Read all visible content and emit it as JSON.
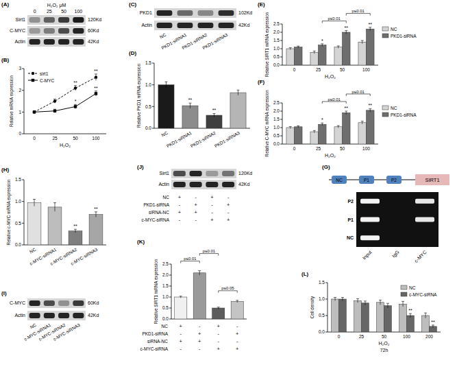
{
  "panel_labels": [
    "(A)",
    "(B)",
    "(C)",
    "(D)",
    "(E)",
    "(F)",
    "(G)",
    "(H)",
    "(I)",
    "(J)",
    "(K)",
    "(L)"
  ],
  "blots": [
    {
      "header": "H₂O₂ μM",
      "lanes": [
        "0",
        "25",
        "50",
        "100"
      ],
      "rows": [
        {
          "name": "Sirt1",
          "size": "120Kd",
          "intensity": [
            0.35,
            0.6,
            0.8,
            0.95
          ]
        },
        {
          "name": "C-MYC",
          "size": "60Kd",
          "intensity": [
            0.3,
            0.45,
            0.7,
            0.9
          ]
        },
        {
          "name": "Actin",
          "size": "42Kd",
          "intensity": [
            0.9,
            0.9,
            0.9,
            0.9
          ]
        }
      ]
    },
    {
      "lanes": [
        "NC",
        "PKD1-siRNA1",
        "PKD1-siRNA2",
        "PKD1-siRNA3"
      ],
      "rows": [
        {
          "name": "PKD1",
          "size": "102Kd",
          "intensity": [
            0.9,
            0.55,
            0.4,
            0.85
          ]
        },
        {
          "name": "Actin",
          "size": "42Kd",
          "intensity": [
            0.9,
            0.9,
            0.9,
            0.9
          ]
        }
      ]
    },
    {
      "lanes": [
        "NC",
        "c-MYC-siRNA1",
        "c-MYC-siRNA2",
        "c-MYC-siRNA3"
      ],
      "rows": [
        {
          "name": "C-MYC",
          "size": "60Kd",
          "intensity": [
            0.9,
            0.7,
            0.35,
            0.8
          ]
        },
        {
          "name": "Actin",
          "size": "42Kd",
          "intensity": [
            0.9,
            0.9,
            0.9,
            0.9
          ]
        }
      ]
    },
    {
      "rows": [
        {
          "name": "Sirt1",
          "size": "120Kd",
          "intensity": [
            0.7,
            0.9,
            0.3,
            0.5
          ]
        },
        {
          "name": "Actin",
          "size": "42Kd",
          "intensity": [
            0.9,
            0.9,
            0.9,
            0.9
          ]
        }
      ],
      "conditions": [
        {
          "label": "NC",
          "signs": [
            "+",
            "-",
            "+",
            "-"
          ]
        },
        {
          "label": "PKD1-siRNA",
          "signs": [
            "-",
            "+",
            "-",
            "+"
          ]
        },
        {
          "label": "siRNA-NC",
          "signs": [
            "+",
            "+",
            "-",
            "-"
          ]
        },
        {
          "label": "c-MYC-siRNA",
          "signs": [
            "-",
            "-",
            "+",
            "+"
          ]
        }
      ]
    }
  ],
  "diagram": {
    "sites": [
      "NC",
      "P1",
      "P2"
    ],
    "gene": "SIRT1",
    "gel": {
      "rows": [
        "P2",
        "P1",
        "NC"
      ],
      "lanes": [
        "Input",
        "IgG",
        "c-MYC"
      ],
      "intensity": [
        [
          0.95,
          0,
          0.9
        ],
        [
          0.95,
          0,
          0.9
        ],
        [
          0.95,
          0,
          0
        ]
      ]
    }
  },
  "chart_data": [
    {
      "type": "line",
      "categories": [
        "0",
        "25",
        "50",
        "100"
      ],
      "x_label": "H₂O₂",
      "y_label": "Relative mRNA expression",
      "ylim": [
        0,
        3
      ],
      "yticks": [
        0,
        1,
        2,
        3
      ],
      "legend": "top-left",
      "series": [
        {
          "name": "sirt1",
          "color": "#000000",
          "line_style": "dashed",
          "marker": "circle",
          "values": [
            1,
            1.5,
            2.1,
            2.6
          ],
          "errors": [
            0.05,
            0.1,
            0.12,
            0.15
          ]
        },
        {
          "name": "C-MYC",
          "color": "#000000",
          "line_style": "solid",
          "marker": "square",
          "values": [
            1,
            1.05,
            1.25,
            1.85
          ],
          "errors": [
            0.05,
            0.08,
            0.1,
            0.12
          ]
        }
      ],
      "annotations": [
        {
          "text": "**",
          "series": 0,
          "index": 2
        },
        {
          "text": "*",
          "series": 1,
          "index": 2
        },
        {
          "text": "**",
          "series": 0,
          "index": 3
        },
        {
          "text": "**",
          "series": 1,
          "index": 3
        }
      ]
    },
    {
      "type": "bar",
      "categories": [
        "NC",
        "PKD1-siRNA1",
        "PKD1-siRNA2",
        "PKD1-siRNA3"
      ],
      "values": [
        1.0,
        0.52,
        0.3,
        0.82
      ],
      "errors": [
        0.07,
        0.06,
        0.04,
        0.06
      ],
      "colors": [
        "#1a1a1a",
        "#8c8c8c",
        "#3f3f3f",
        "#b5b5b5"
      ],
      "y_label": "Relative PKD1 mRNA expression",
      "ylim": [
        0,
        1.5
      ],
      "yticks": [
        {
          "value": 0,
          "label": "0.0"
        },
        0.5,
        {
          "value": 1,
          "label": "1.0"
        },
        1.5
      ],
      "annotations": [
        {
          "text": "**",
          "index": 1
        },
        {
          "text": "**",
          "index": 2
        }
      ]
    },
    {
      "type": "bar",
      "categories": [
        "0",
        "25",
        "50",
        "100"
      ],
      "x_label": "H₂O₂",
      "y_label": "Relative SIRT1 mRNA expression",
      "ylim": [
        0,
        2.5
      ],
      "yticks": [
        {
          "value": 0,
          "label": "0.0"
        },
        0.5,
        {
          "value": 1,
          "label": "1.0"
        },
        1.5,
        {
          "value": 2,
          "label": "2.0"
        },
        2.5
      ],
      "legend": "right",
      "series": [
        {
          "name": "NC",
          "color": "#d4d4d4",
          "values": [
            1.0,
            0.78,
            1.1,
            1.4
          ],
          "errors": [
            0.06,
            0.08,
            0.07,
            0.1
          ]
        },
        {
          "name": "PKD1-siRNA",
          "color": "#6e6e6e",
          "values": [
            1.1,
            1.22,
            2.0,
            2.2
          ],
          "errors": [
            0.06,
            0.08,
            0.1,
            0.1
          ]
        }
      ],
      "annotations": [
        {
          "text": "*",
          "series": 1,
          "index": 1
        },
        {
          "text": "**",
          "series": 1,
          "index": 2
        },
        {
          "text": "**",
          "series": 1,
          "index": 3
        },
        {
          "text": "p≤0.01",
          "series": 1,
          "from": 1,
          "to": 2
        },
        {
          "text": "p≤0.01",
          "series": 1,
          "from": 2,
          "to": 3
        }
      ]
    },
    {
      "type": "bar",
      "categories": [
        "0",
        "25",
        "50",
        "100"
      ],
      "x_label": "H₂O₂",
      "y_label": "Relative C-MYC mRNA expression",
      "ylim": [
        0,
        2.5
      ],
      "yticks": [
        {
          "value": 0,
          "label": "0.0"
        },
        0.5,
        {
          "value": 1,
          "label": "1.0"
        },
        1.5,
        {
          "value": 2,
          "label": "2.0"
        },
        2.5
      ],
      "legend": "right",
      "series": [
        {
          "name": "NC",
          "color": "#d4d4d4",
          "values": [
            1.0,
            0.75,
            1.05,
            1.3
          ],
          "errors": [
            0.06,
            0.07,
            0.07,
            0.09
          ]
        },
        {
          "name": "PKD1-siRNA",
          "color": "#6e6e6e",
          "values": [
            1.05,
            1.2,
            1.9,
            2.05
          ],
          "errors": [
            0.06,
            0.08,
            0.1,
            0.1
          ]
        }
      ],
      "annotations": [
        {
          "text": "*",
          "series": 1,
          "index": 1
        },
        {
          "text": "**",
          "series": 1,
          "index": 2
        },
        {
          "text": "**",
          "series": 1,
          "index": 3
        },
        {
          "text": "p≤0.01",
          "series": 1,
          "from": 1,
          "to": 2
        },
        {
          "text": "p≤0.01",
          "series": 1,
          "from": 2,
          "to": 3
        }
      ]
    },
    {
      "type": "bar",
      "categories": [
        "NC",
        "c-MYC-siRNA1",
        "c-MYC-siRNA2",
        "c-MYC-siRNA3"
      ],
      "values": [
        0.97,
        0.87,
        0.32,
        0.7
      ],
      "errors": [
        0.08,
        0.1,
        0.04,
        0.06
      ],
      "colors": [
        "#e0e0e0",
        "#bdbdbd",
        "#7f7f7f",
        "#a6a6a6"
      ],
      "y_label": "Relative c-MYC mRNA expression",
      "ylim": [
        0,
        1.5
      ],
      "yticks": [
        {
          "value": 0,
          "label": "0.0"
        },
        0.5,
        {
          "value": 1,
          "label": "1.0"
        },
        1.5
      ],
      "annotations": [
        {
          "text": "**",
          "index": 2
        },
        {
          "text": "**",
          "index": 3
        }
      ]
    },
    {
      "type": "bar",
      "categories": [
        null,
        null,
        null,
        null
      ],
      "values": [
        1.0,
        2.1,
        0.5,
        0.8
      ],
      "errors": [
        0.04,
        0.1,
        0.04,
        0.05
      ],
      "colors": [
        "#f0f0f0",
        "#9a9a9a",
        "#5c5c5c",
        "#c4c4c4"
      ],
      "y_label": "Relative SIRT1 mRNA expression",
      "ylim": [
        0,
        2.5
      ],
      "yticks": [
        {
          "value": 0,
          "label": "0.0"
        },
        0.5,
        {
          "value": 1,
          "label": "1.0"
        },
        1.5,
        {
          "value": 2,
          "label": "2.0"
        },
        2.5
      ],
      "annotations": [
        {
          "text": "p≤0.01",
          "from": 0,
          "to": 1
        },
        {
          "text": "p≤0.01",
          "from": 1,
          "to": 2
        },
        {
          "text": "p≤0.05",
          "from": 2,
          "to": 3
        }
      ],
      "conditions": [
        {
          "label": "NC",
          "signs": [
            "+",
            "-",
            "+",
            "-"
          ]
        },
        {
          "label": "PKD1-siRNA",
          "signs": [
            "-",
            "+",
            "-",
            "+"
          ]
        },
        {
          "label": "siRNA-NC",
          "signs": [
            "+",
            "+",
            "-",
            "-"
          ]
        },
        {
          "label": "c-MYC-siRNA",
          "signs": [
            "-",
            "-",
            "+",
            "+"
          ]
        }
      ]
    },
    {
      "type": "bar",
      "categories": [
        "0",
        "25",
        "50",
        "100",
        "200"
      ],
      "x_label": "H₂O₂",
      "subtitle": "72h",
      "y_label": "Cell density",
      "ylim": [
        0,
        1.5
      ],
      "yticks": [
        {
          "value": 0,
          "label": "0.0"
        },
        0.5,
        {
          "value": 1,
          "label": "1.0"
        },
        1.5
      ],
      "legend": "top-right",
      "series": [
        {
          "name": "NC",
          "color": "#bdbdbd",
          "values": [
            1.0,
            0.95,
            0.9,
            0.85,
            0.5
          ],
          "errors": [
            0.05,
            0.06,
            0.07,
            0.08,
            0.08
          ]
        },
        {
          "name": "c-MYC-siRNA",
          "color": "#666666",
          "values": [
            1.0,
            0.88,
            0.8,
            0.5,
            0.17
          ],
          "errors": [
            0.05,
            0.06,
            0.07,
            0.06,
            0.04
          ]
        }
      ],
      "annotations": [
        {
          "text": "**",
          "series": 1,
          "index": 3
        },
        {
          "text": "**",
          "series": 1,
          "index": 4
        }
      ]
    }
  ]
}
